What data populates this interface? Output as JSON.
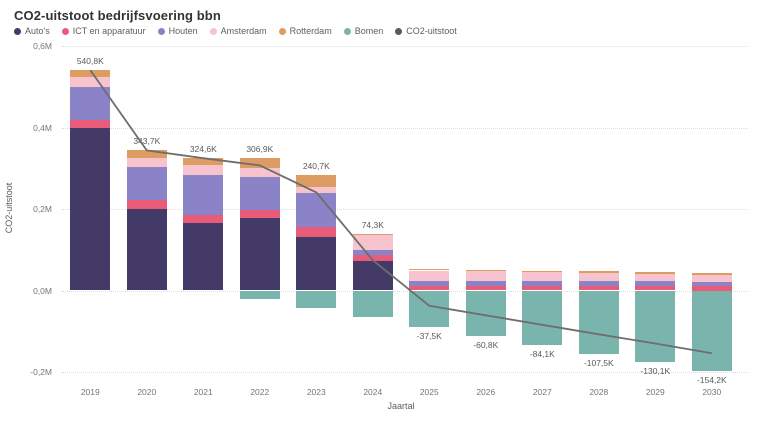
{
  "title": "CO2-uitstoot bedrijfsvoering bbn",
  "chart_data": {
    "type": "bar",
    "subtype": "stacked-bars-with-line-overlay",
    "title": "CO2-uitstoot bedrijfsvoering bbn",
    "xlabel": "Jaartal",
    "ylabel": "CO2-uitstoot",
    "value_unit": "thousands (K)",
    "grid": "horizontal-dotted",
    "legend_position": "top-left",
    "ylim": [
      -200,
      600
    ],
    "y_ticks": [
      {
        "label": "0,6M",
        "value": 600
      },
      {
        "label": "0,4M",
        "value": 400
      },
      {
        "label": "0,2M",
        "value": 200
      },
      {
        "label": "0,0M",
        "value": 0
      },
      {
        "label": "-0,2M",
        "value": -200
      }
    ],
    "categories": [
      "2019",
      "2020",
      "2021",
      "2022",
      "2023",
      "2024",
      "2025",
      "2026",
      "2027",
      "2028",
      "2029",
      "2030"
    ],
    "series": [
      {
        "name": "Auto's",
        "color": "#443a68",
        "values": [
          397.7,
          200.6,
          165.1,
          176.9,
          130.3,
          72.0,
          0,
          0,
          0,
          0,
          0,
          0
        ]
      },
      {
        "name": "ICT en apparatuur",
        "color": "#e85c7a",
        "values": [
          20.4,
          20.4,
          19.6,
          20.4,
          26.0,
          16.0,
          12,
          12,
          12,
          12,
          12,
          11
        ]
      },
      {
        "name": "Houten",
        "color": "#8b83c7",
        "values": [
          81.0,
          81.7,
          98.2,
          80.2,
          82.0,
          12.0,
          12,
          12,
          12,
          11,
          11,
          10
        ]
      },
      {
        "name": "Amsterdam",
        "color": "#f6c3cf",
        "values": [
          24.5,
          22.1,
          24.5,
          24.5,
          16.4,
          36.0,
          25,
          23,
          21,
          20,
          18,
          17
        ]
      },
      {
        "name": "Rotterdam",
        "color": "#dc9c62",
        "values": [
          17.2,
          18.9,
          17.2,
          24.5,
          29.0,
          2.0,
          4,
          4,
          4,
          4,
          4,
          4
        ]
      },
      {
        "name": "Bomen",
        "color": "#79b5ad",
        "values": [
          0,
          0,
          0,
          -19.6,
          -43.0,
          -63.7,
          -90.5,
          -111.8,
          -133.1,
          -154.5,
          -175.1,
          -196.2
        ]
      }
    ],
    "line_series": {
      "name": "CO2-uitstoot",
      "color": "#6e6e6e",
      "values": [
        540.8,
        343.7,
        324.6,
        306.9,
        240.7,
        74.3,
        -37.5,
        -60.8,
        -84.1,
        -107.5,
        -130.1,
        -154.2
      ]
    },
    "data_labels": [
      "540,8K",
      "343,7K",
      "324,6K",
      "306,9K",
      "240,7K",
      "74,3K",
      "-37,5K",
      "-60,8K",
      "-84,1K",
      "-107,5K",
      "-130,1K",
      "-154,2K"
    ]
  },
  "colors": {
    "background": "#ffffff",
    "grid": "#dcdcdc",
    "title_text": "#333333",
    "axis_text": "#757575",
    "label_text": "#5a5a5a"
  }
}
